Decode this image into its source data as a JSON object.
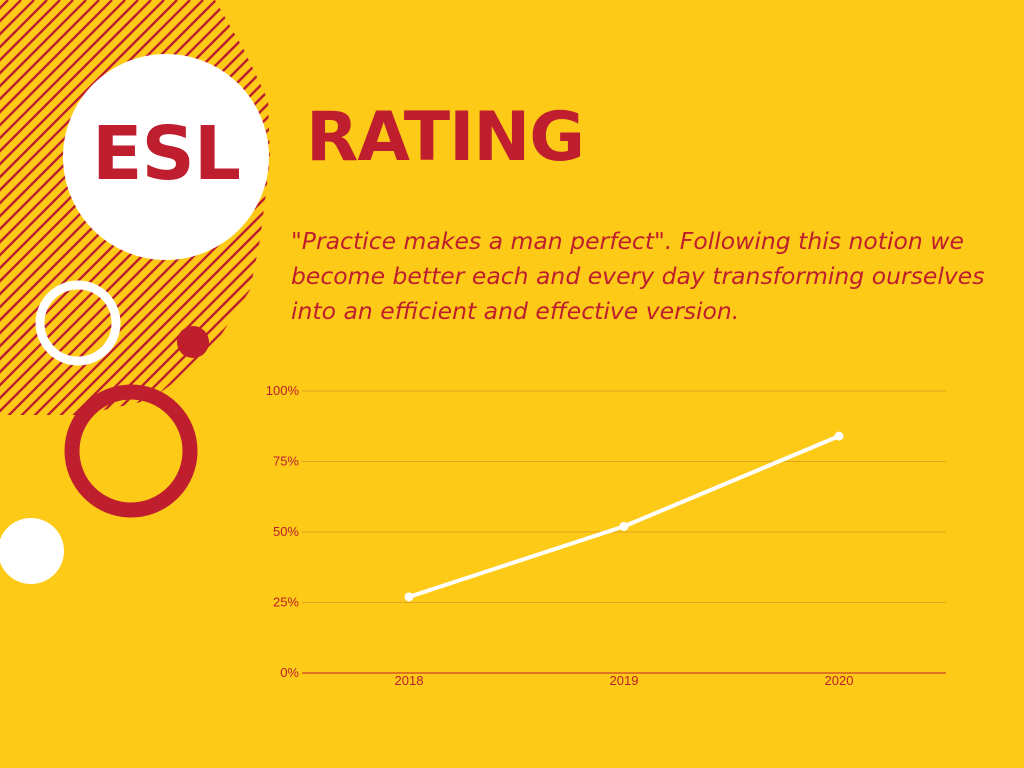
{
  "badge": {
    "text": "ESL"
  },
  "title": "RATING",
  "quote": "\"Practice makes a man perfect\". Following this notion we become better each and every day transforming ourselves into an efficient and effective version.",
  "colors": {
    "background": "#FDCB17",
    "accent": "#BE1E2D",
    "line": "#FFFFFF",
    "gridline": "#E2A322"
  },
  "chart_data": {
    "type": "line",
    "categories": [
      "2018",
      "2019",
      "2020"
    ],
    "series": [
      {
        "values": [
          27,
          52,
          84
        ]
      }
    ],
    "y_ticks": [
      "0%",
      "25%",
      "50%",
      "75%",
      "100%"
    ],
    "ylim": [
      0,
      100
    ],
    "grid": true,
    "legend": "none"
  }
}
